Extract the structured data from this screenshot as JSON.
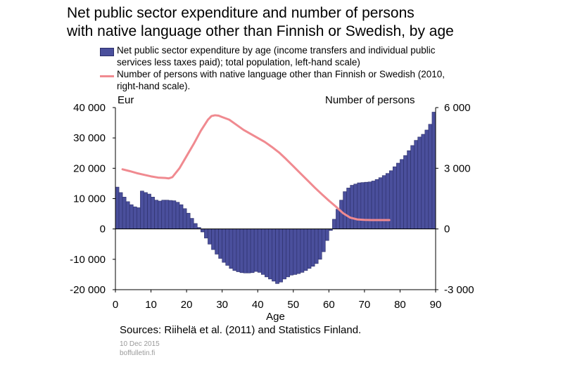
{
  "title_line1": "Net public sector expenditure and number of persons",
  "title_line2": "with native language other than Finnish or Swedish, by age",
  "legend": {
    "bars": "Net public sector expenditure by age (income transfers and individual public services less taxes paid); total population, left-hand scale)",
    "line": "Number of persons with native language other than Finnish or Swedish (2010, right-hand scale)."
  },
  "left_unit": "Eur",
  "right_unit": "Number of persons",
  "sources": "Sources: Riihelä et al. (2011) and Statistics Finland.",
  "date": "10 Dec 2015",
  "site": "boffulletin.fi",
  "chart_data": {
    "type": "bar+line",
    "xlabel": "Age",
    "xlim": [
      0,
      90
    ],
    "x_ticks": [
      "0",
      "10",
      "20",
      "30",
      "40",
      "50",
      "60",
      "70",
      "80",
      "90"
    ],
    "y_left_lim": [
      -20000,
      40000
    ],
    "y_left_ticks": [
      "-20 000",
      "-10 000",
      "0",
      "10 000",
      "20 000",
      "30 000",
      "40 000"
    ],
    "y_right_lim": [
      -3000,
      6000
    ],
    "y_right_ticks": [
      "-3 000",
      "0",
      "3 000",
      "6 000"
    ],
    "bar_color": "#4a4f9c",
    "line_color": "#f08a90",
    "series": [
      {
        "name": "Net public sector expenditure by age",
        "axis": "left",
        "type": "bar",
        "x": [
          0,
          1,
          2,
          3,
          4,
          5,
          6,
          7,
          8,
          9,
          10,
          11,
          12,
          13,
          14,
          15,
          16,
          17,
          18,
          19,
          20,
          21,
          22,
          23,
          24,
          25,
          26,
          27,
          28,
          29,
          30,
          31,
          32,
          33,
          34,
          35,
          36,
          37,
          38,
          39,
          40,
          41,
          42,
          43,
          44,
          45,
          46,
          47,
          48,
          49,
          50,
          51,
          52,
          53,
          54,
          55,
          56,
          57,
          58,
          59,
          60,
          61,
          62,
          63,
          64,
          65,
          66,
          67,
          68,
          69,
          70,
          71,
          72,
          73,
          74,
          75,
          76,
          77,
          78,
          79,
          80,
          81,
          82,
          83,
          84,
          85,
          86,
          87,
          88,
          89
        ],
        "values": [
          13800,
          12000,
          10500,
          9000,
          8000,
          7300,
          7000,
          12500,
          12000,
          11500,
          10500,
          9500,
          9200,
          9500,
          9500,
          9400,
          9300,
          8800,
          8000,
          6700,
          5200,
          3500,
          1800,
          500,
          -1000,
          -3000,
          -5000,
          -6800,
          -8300,
          -9700,
          -11000,
          -12000,
          -13000,
          -13700,
          -14100,
          -14400,
          -14500,
          -14500,
          -14400,
          -14000,
          -14300,
          -15000,
          -15800,
          -16500,
          -17200,
          -18000,
          -17500,
          -16500,
          -15800,
          -15200,
          -15000,
          -14700,
          -14300,
          -13700,
          -13000,
          -12300,
          -11400,
          -10000,
          -7500,
          -3800,
          -500,
          3200,
          6500,
          9500,
          12300,
          13500,
          14400,
          14800,
          15200,
          15300,
          15400,
          15500,
          15800,
          16300,
          16900,
          17600,
          18300,
          19200,
          20500,
          21700,
          22900,
          24200,
          25800,
          27500,
          29200,
          30300,
          31200,
          32600,
          34500,
          38500
        ]
      },
      {
        "name": "Number of persons with native language other than Finnish or Swedish",
        "axis": "right",
        "type": "line",
        "x": [
          2,
          4,
          6,
          8,
          10,
          12,
          14,
          15,
          16,
          18,
          20,
          22,
          24,
          26,
          27,
          28,
          29,
          30,
          32,
          34,
          36,
          38,
          40,
          42,
          44,
          46,
          48,
          50,
          52,
          54,
          56,
          58,
          60,
          62,
          64,
          66,
          68,
          70,
          72,
          74,
          76,
          77
        ],
        "values": [
          2950,
          2860,
          2760,
          2680,
          2600,
          2540,
          2520,
          2500,
          2560,
          3000,
          3600,
          4200,
          4850,
          5400,
          5580,
          5620,
          5600,
          5530,
          5400,
          5150,
          4900,
          4700,
          4500,
          4300,
          4050,
          3780,
          3450,
          3100,
          2750,
          2400,
          2050,
          1720,
          1400,
          1100,
          780,
          560,
          470,
          450,
          440,
          440,
          440,
          440
        ]
      }
    ]
  }
}
